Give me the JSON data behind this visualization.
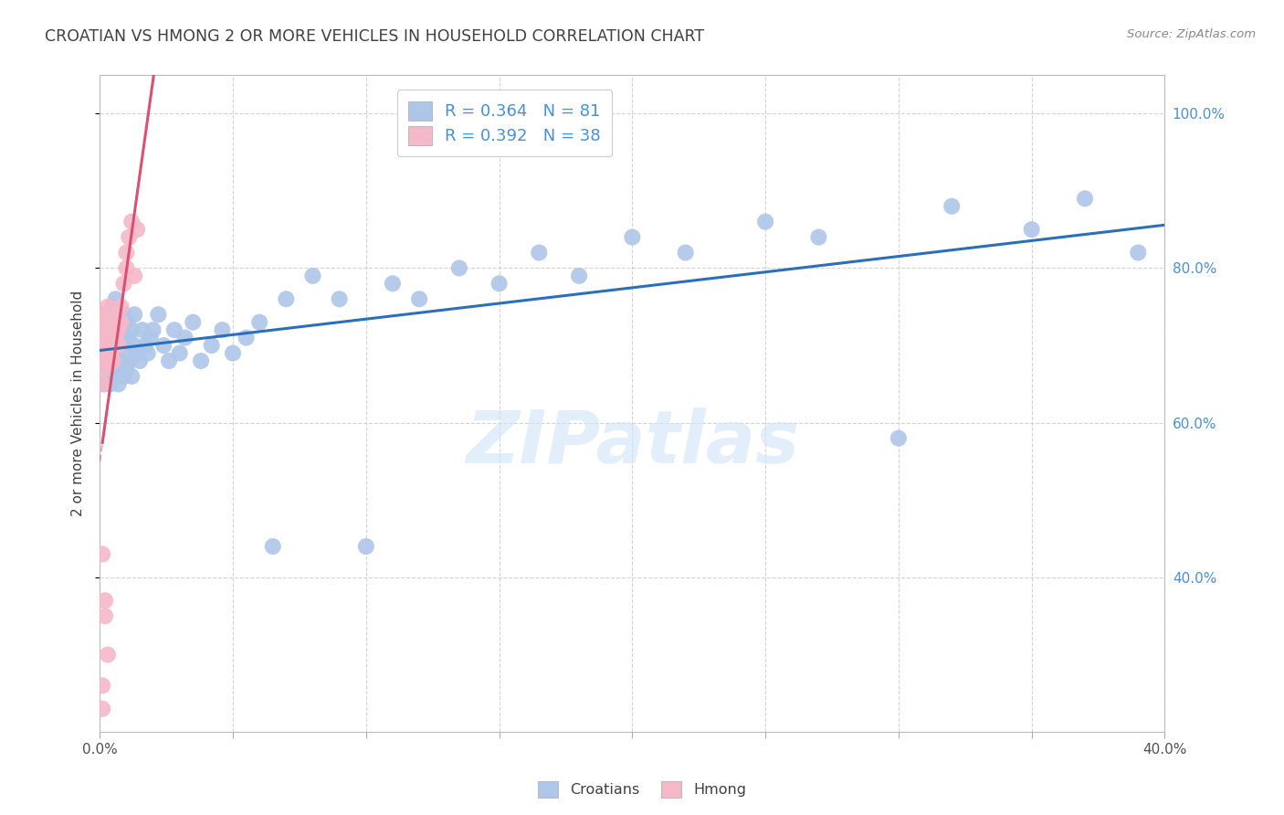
{
  "title": "CROATIAN VS HMONG 2 OR MORE VEHICLES IN HOUSEHOLD CORRELATION CHART",
  "source": "Source: ZipAtlas.com",
  "ylabel": "2 or more Vehicles in Household",
  "watermark": "ZIPatlas",
  "xmin": 0.0,
  "xmax": 0.4,
  "ymin": 0.2,
  "ymax": 1.05,
  "yticks": [
    0.4,
    0.6,
    0.8,
    1.0
  ],
  "legend_r1": "R = 0.364",
  "legend_n1": "N = 81",
  "legend_r2": "R = 0.392",
  "legend_n2": "N = 38",
  "croatian_color": "#aec6e8",
  "hmong_color": "#f5b8c8",
  "trendline_croatian_color": "#2b6fba",
  "trendline_hmong_color": "#d95070",
  "background_color": "#ffffff",
  "grid_color": "#c8c8c8",
  "croatian_x": [
    0.001,
    0.002,
    0.002,
    0.002,
    0.003,
    0.003,
    0.003,
    0.003,
    0.004,
    0.004,
    0.004,
    0.004,
    0.005,
    0.005,
    0.005,
    0.005,
    0.005,
    0.006,
    0.006,
    0.006,
    0.006,
    0.006,
    0.007,
    0.007,
    0.007,
    0.007,
    0.008,
    0.008,
    0.008,
    0.009,
    0.009,
    0.009,
    0.01,
    0.01,
    0.01,
    0.011,
    0.011,
    0.012,
    0.012,
    0.013,
    0.013,
    0.014,
    0.015,
    0.016,
    0.017,
    0.018,
    0.019,
    0.02,
    0.022,
    0.024,
    0.026,
    0.028,
    0.03,
    0.032,
    0.035,
    0.038,
    0.042,
    0.046,
    0.05,
    0.055,
    0.06,
    0.065,
    0.07,
    0.08,
    0.09,
    0.1,
    0.11,
    0.12,
    0.135,
    0.15,
    0.165,
    0.18,
    0.2,
    0.22,
    0.25,
    0.27,
    0.3,
    0.32,
    0.35,
    0.37,
    0.39
  ],
  "croatian_y": [
    0.68,
    0.7,
    0.65,
    0.72,
    0.68,
    0.73,
    0.67,
    0.71,
    0.69,
    0.74,
    0.65,
    0.71,
    0.68,
    0.72,
    0.66,
    0.7,
    0.75,
    0.69,
    0.73,
    0.67,
    0.71,
    0.76,
    0.68,
    0.72,
    0.65,
    0.74,
    0.7,
    0.73,
    0.68,
    0.71,
    0.66,
    0.74,
    0.7,
    0.67,
    0.73,
    0.71,
    0.68,
    0.72,
    0.66,
    0.7,
    0.74,
    0.69,
    0.68,
    0.72,
    0.7,
    0.69,
    0.71,
    0.72,
    0.74,
    0.7,
    0.68,
    0.72,
    0.69,
    0.71,
    0.73,
    0.68,
    0.7,
    0.72,
    0.69,
    0.71,
    0.73,
    0.44,
    0.76,
    0.79,
    0.76,
    0.44,
    0.78,
    0.76,
    0.8,
    0.78,
    0.82,
    0.79,
    0.84,
    0.82,
    0.86,
    0.84,
    0.58,
    0.88,
    0.85,
    0.89,
    0.82
  ],
  "hmong_x": [
    0.001,
    0.001,
    0.001,
    0.001,
    0.001,
    0.002,
    0.002,
    0.002,
    0.002,
    0.003,
    0.003,
    0.003,
    0.003,
    0.004,
    0.004,
    0.004,
    0.005,
    0.005,
    0.005,
    0.006,
    0.006,
    0.007,
    0.007,
    0.008,
    0.008,
    0.009,
    0.01,
    0.01,
    0.011,
    0.012,
    0.013,
    0.014,
    0.001,
    0.002,
    0.002,
    0.003,
    0.001,
    0.001
  ],
  "hmong_y": [
    0.68,
    0.72,
    0.7,
    0.65,
    0.74,
    0.67,
    0.71,
    0.69,
    0.73,
    0.7,
    0.72,
    0.68,
    0.75,
    0.71,
    0.69,
    0.73,
    0.7,
    0.72,
    0.68,
    0.71,
    0.74,
    0.72,
    0.7,
    0.73,
    0.75,
    0.78,
    0.8,
    0.82,
    0.84,
    0.86,
    0.79,
    0.85,
    0.43,
    0.37,
    0.35,
    0.3,
    0.23,
    0.26
  ]
}
